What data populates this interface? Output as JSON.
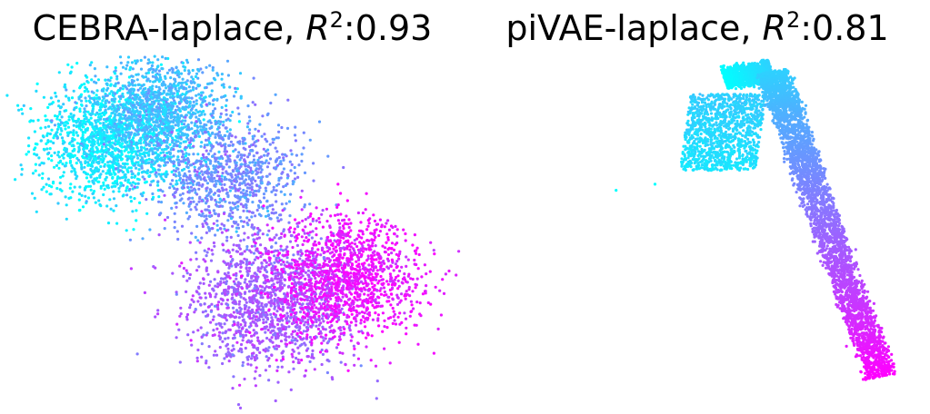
{
  "chart_data": [
    {
      "type": "scatter",
      "title_prefix": "CEBRA-laplace, ",
      "r2_symbol": "R",
      "r2_exponent": "2",
      "r2_value": ":0.93",
      "axes_visible": false,
      "grid": false,
      "legend": "none",
      "colormap": [
        "#00ffff",
        "#ff00ff"
      ],
      "color_variable": "t",
      "shape": "two-lobed blob",
      "cluster_centers": [
        {
          "x": -0.8,
          "y": 0.6,
          "t": 0.08,
          "spread": 0.22,
          "count": 1400
        },
        {
          "x": -0.45,
          "y": 0.78,
          "t": 0.25,
          "spread": 0.2,
          "count": 1200
        },
        {
          "x": -0.05,
          "y": 0.35,
          "t": 0.45,
          "spread": 0.22,
          "count": 900
        },
        {
          "x": 0.2,
          "y": -0.45,
          "t": 0.65,
          "spread": 0.25,
          "count": 1400
        },
        {
          "x": 0.7,
          "y": -0.3,
          "t": 0.92,
          "spread": 0.22,
          "count": 1300
        }
      ],
      "xlim": [
        -1.25,
        1.25
      ],
      "ylim": [
        -1.1,
        1.1
      ]
    },
    {
      "type": "scatter",
      "title_prefix": "piVAE-laplace, ",
      "r2_symbol": "R",
      "r2_exponent": "2",
      "r2_value": ":0.81",
      "axes_visible": false,
      "grid": false,
      "legend": "none",
      "colormap": [
        "#00ffff",
        "#ff00ff"
      ],
      "color_variable": "t",
      "shape": "inverted-L band",
      "band_path": [
        {
          "x": 0.2,
          "y": 0.95,
          "t": 0.0
        },
        {
          "x": 0.42,
          "y": 1.0,
          "t": 0.18
        },
        {
          "x": 0.5,
          "y": 0.7,
          "t": 0.32
        },
        {
          "x": 0.62,
          "y": 0.2,
          "t": 0.5
        },
        {
          "x": 0.78,
          "y": -0.45,
          "t": 0.75
        },
        {
          "x": 0.93,
          "y": -1.0,
          "t": 1.0
        }
      ],
      "wing": {
        "x": 0.22,
        "y": 0.6,
        "t": 0.05,
        "width": 0.35,
        "height": 0.5,
        "count": 1200
      },
      "outliers": [
        {
          "x": -0.3,
          "y": 0.22,
          "t": 0.0
        },
        {
          "x": -0.12,
          "y": 0.26,
          "t": 0.0
        }
      ],
      "xlim": [
        -1.0,
        1.1
      ],
      "ylim": [
        -1.15,
        1.05
      ]
    }
  ]
}
